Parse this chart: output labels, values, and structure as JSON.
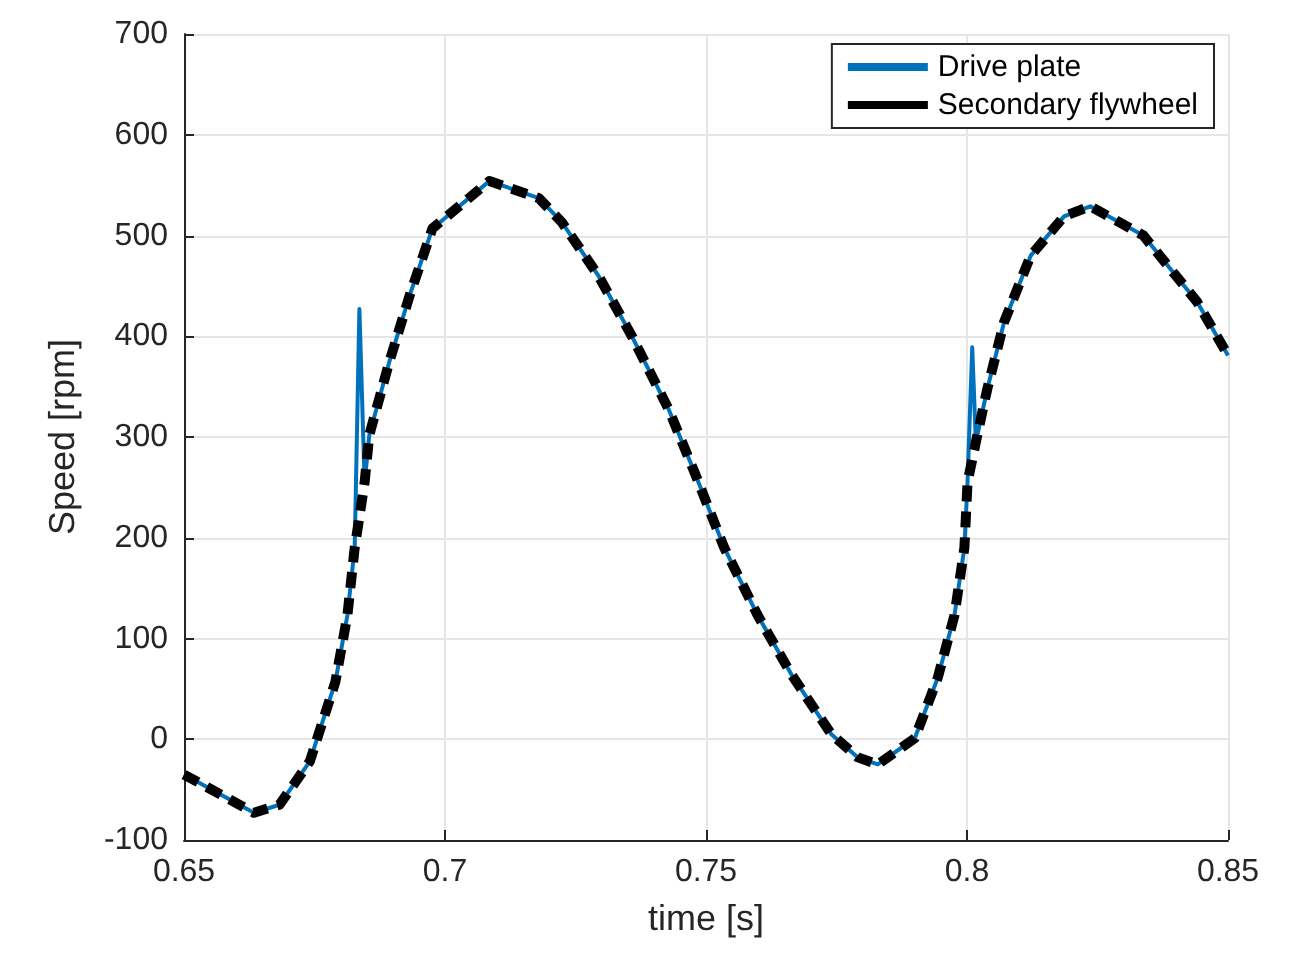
{
  "chart_data": {
    "type": "line",
    "xlabel": "time [s]",
    "ylabel": "Speed [rpm]",
    "xlim": [
      0.65,
      0.85
    ],
    "xticks": [
      0.65,
      0.7,
      0.75,
      0.8,
      0.85
    ],
    "ylim": [
      -100,
      700
    ],
    "yticks": [
      -100,
      0,
      100,
      200,
      300,
      400,
      500,
      600,
      700
    ],
    "grid": true,
    "legend": "top right",
    "marker": "none",
    "series": [
      {
        "name": "Drive plate",
        "color": "#0072bd",
        "line_style": "solid",
        "x": [
          0.65,
          0.6634,
          0.6683,
          0.6741,
          0.679,
          0.6813,
          0.6827,
          0.6836,
          0.6846,
          0.6855,
          0.6893,
          0.6932,
          0.6976,
          0.7085,
          0.718,
          0.7224,
          0.7294,
          0.7358,
          0.7428,
          0.7478,
          0.7535,
          0.7599,
          0.7664,
          0.774,
          0.7791,
          0.7829,
          0.79,
          0.7944,
          0.7976,
          0.7995,
          0.8001,
          0.801,
          0.8017,
          0.8039,
          0.8071,
          0.8122,
          0.8186,
          0.8236,
          0.8338,
          0.8441,
          0.85
        ],
        "values": [
          -35,
          -73,
          -65,
          -22,
          57,
          123,
          190,
          427,
          255,
          302,
          374,
          440,
          507,
          554,
          537,
          513,
          460,
          400,
          328,
          265,
          190,
          123,
          64,
          5,
          -18,
          -25,
          1,
          61,
          123,
          190,
          255,
          389,
          295,
          348,
          414,
          480,
          519,
          529,
          500,
          434,
          381
        ]
      },
      {
        "name": "Secondary flywheel",
        "color": "#000000",
        "line_style": "dashed",
        "x": [
          0.65,
          0.6634,
          0.6683,
          0.6741,
          0.679,
          0.6813,
          0.6827,
          0.6846,
          0.6855,
          0.6893,
          0.6932,
          0.6976,
          0.7085,
          0.718,
          0.7224,
          0.7294,
          0.7358,
          0.7428,
          0.7478,
          0.7535,
          0.7599,
          0.7664,
          0.774,
          0.7791,
          0.7829,
          0.79,
          0.7944,
          0.7976,
          0.7995,
          0.8001,
          0.8017,
          0.8039,
          0.8071,
          0.8122,
          0.8186,
          0.8236,
          0.8338,
          0.8441,
          0.85
        ],
        "values": [
          -35,
          -73,
          -65,
          -22,
          57,
          123,
          190,
          255,
          302,
          374,
          440,
          507,
          554,
          537,
          513,
          460,
          400,
          328,
          265,
          190,
          123,
          64,
          5,
          -18,
          -25,
          1,
          61,
          123,
          190,
          255,
          295,
          348,
          414,
          480,
          519,
          529,
          500,
          434,
          381
        ]
      }
    ]
  }
}
